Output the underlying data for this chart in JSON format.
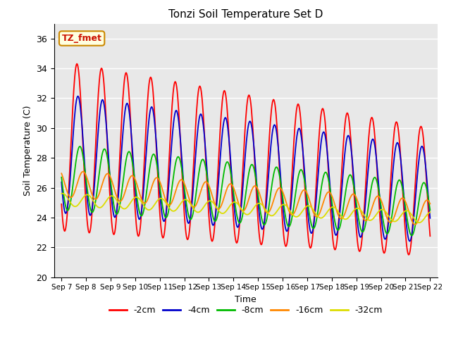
{
  "title": "Tonzi Soil Temperature Set D",
  "xlabel": "Time",
  "ylabel": "Soil Temperature (C)",
  "ylim": [
    20,
    37
  ],
  "xlim": [
    -0.3,
    15.3
  ],
  "annotation_text": "TZ_fmet",
  "bg_color": "#e8e8e8",
  "line_colors": {
    "-2cm": "#ff0000",
    "-4cm": "#0000cc",
    "-8cm": "#00bb00",
    "-16cm": "#ff8800",
    "-32cm": "#dddd00"
  },
  "x_tick_labels": [
    "Sep 7",
    "Sep 8",
    "Sep 9",
    "Sep 10",
    "Sep 11",
    "Sep 12",
    "Sep 13",
    "Sep 14",
    "Sep 15",
    "Sep 16",
    "Sep 17",
    "Sep 18",
    "Sep 19",
    "Sep 20",
    "Sep 21",
    "Sep 22"
  ],
  "x_tick_positions": [
    0,
    1,
    2,
    3,
    4,
    5,
    6,
    7,
    8,
    9,
    10,
    11,
    12,
    13,
    14,
    15
  ],
  "y_ticks": [
    20,
    22,
    24,
    26,
    28,
    30,
    32,
    34,
    36
  ],
  "legend_labels": [
    "-2cm",
    "-4cm",
    "-8cm",
    "-16cm",
    "-32cm"
  ]
}
